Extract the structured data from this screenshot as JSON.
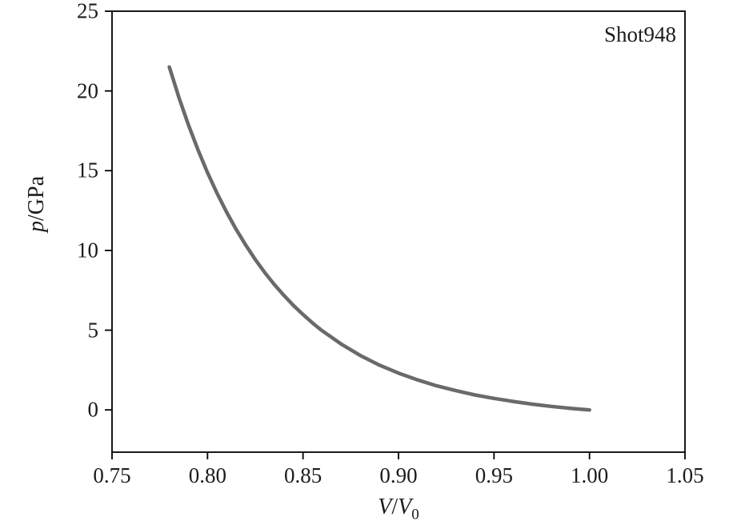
{
  "chart_data": {
    "type": "line",
    "title": "",
    "annotation": "Shot948",
    "xlabel": "V/V0",
    "ylabel": "p/GPa",
    "xlabel_parts": {
      "var1": "V",
      "slash": "/",
      "var2": "V",
      "subscript": "0"
    },
    "ylabel_parts": {
      "var": "p",
      "rest": "/GPa"
    },
    "xlim": [
      0.75,
      1.05
    ],
    "ylim": [
      -2.65,
      25
    ],
    "grid": false,
    "legend_position": "none",
    "frame_color": "#000000",
    "line_color": "#6a6a6d",
    "line_width": 4.5,
    "x_ticks": {
      "values": [
        0.75,
        0.8,
        0.85,
        0.9,
        0.95,
        1.0,
        1.05
      ],
      "labels": [
        "0.75",
        "0.80",
        "0.85",
        "0.90",
        "0.95",
        "1.00",
        "1.05"
      ]
    },
    "y_ticks": {
      "values": [
        0,
        5,
        10,
        15,
        20,
        25
      ],
      "labels": [
        "0",
        "5",
        "10",
        "15",
        "20",
        "25"
      ]
    },
    "series": [
      {
        "name": "Shot948",
        "x": [
          0.78,
          0.785,
          0.79,
          0.795,
          0.8,
          0.805,
          0.81,
          0.815,
          0.82,
          0.825,
          0.83,
          0.835,
          0.84,
          0.845,
          0.85,
          0.855,
          0.86,
          0.87,
          0.88,
          0.89,
          0.9,
          0.91,
          0.92,
          0.93,
          0.94,
          0.95,
          0.96,
          0.97,
          0.98,
          0.99,
          1.0
        ],
        "y": [
          21.5,
          19.6,
          17.87,
          16.31,
          14.88,
          13.58,
          12.4,
          11.32,
          10.33,
          9.43,
          8.61,
          7.86,
          7.18,
          6.55,
          5.98,
          5.45,
          4.97,
          4.13,
          3.41,
          2.81,
          2.31,
          1.88,
          1.51,
          1.21,
          0.94,
          0.72,
          0.53,
          0.36,
          0.22,
          0.1,
          0.0
        ]
      }
    ]
  }
}
